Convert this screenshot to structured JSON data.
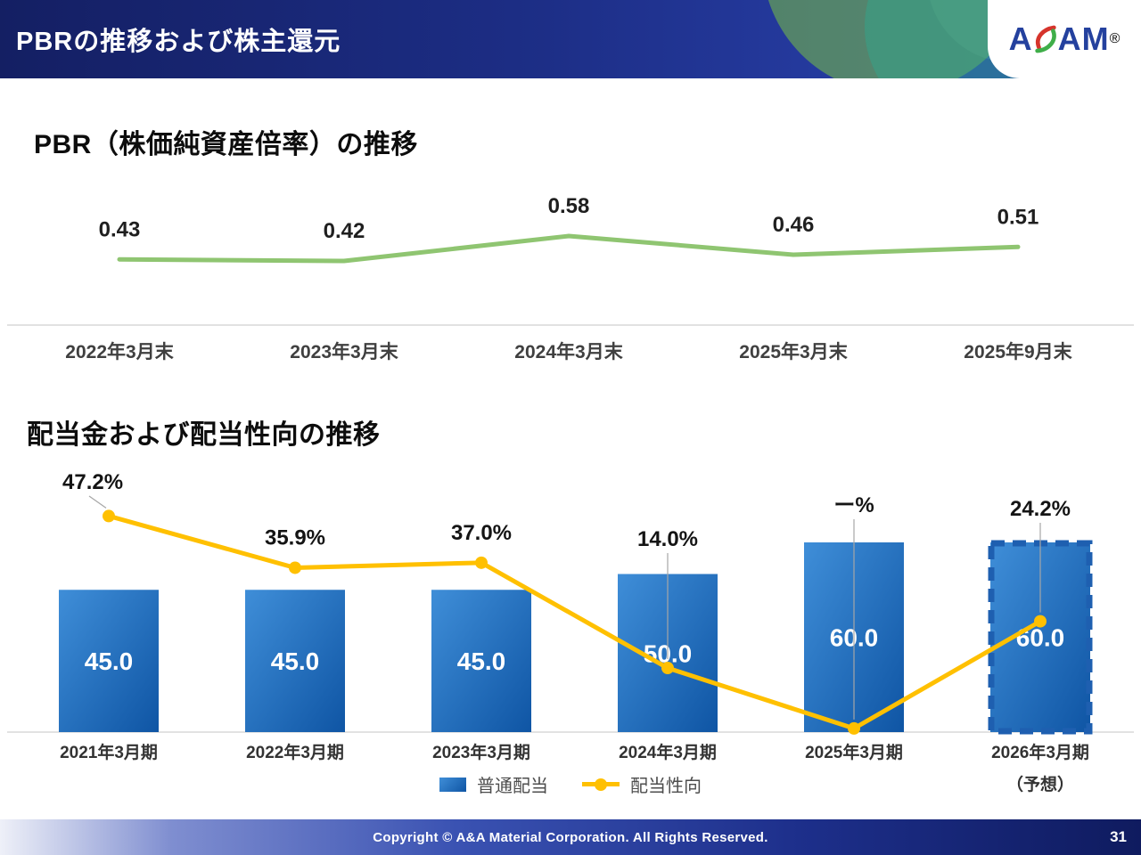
{
  "header": {
    "title": "PBRの推移および株主還元",
    "logo": {
      "part1": "A",
      "part2": "AM",
      "registered": "®"
    }
  },
  "sections": {
    "pbr_title": "PBR（株価純資産倍率）の推移",
    "dividend_title": "配当金および配当性向の推移"
  },
  "legend": {
    "bar_label": "普通配当",
    "line_label": "配当性向"
  },
  "footer": {
    "copyright": "Copyright © A&A Material Corporation. All Rights Reserved.",
    "page": "31"
  },
  "chart_data": [
    {
      "type": "line",
      "title": "PBR（株価純資産倍率）の推移",
      "categories": [
        "2022年3月末",
        "2023年3月末",
        "2024年3月末",
        "2025年3月末",
        "2025年9月末"
      ],
      "series": [
        {
          "name": "PBR",
          "values": [
            0.43,
            0.42,
            0.58,
            0.46,
            0.51
          ]
        }
      ],
      "labels": [
        "0.43",
        "0.42",
        "0.58",
        "0.46",
        "0.51"
      ],
      "line_color": "#8fc571",
      "ylim": [
        0.4,
        0.62
      ],
      "grid": false,
      "legend_position": "none"
    },
    {
      "type": "bar+line",
      "title": "配当金および配当性向の推移",
      "categories": [
        "2021年3月期",
        "2022年3月期",
        "2023年3月期",
        "2024年3月期",
        "2025年3月期",
        "2026年3月期"
      ],
      "category_note": {
        "index": 5,
        "text": "（予想）"
      },
      "series": [
        {
          "name": "普通配当",
          "type": "bar",
          "values": [
            45.0,
            45.0,
            45.0,
            50.0,
            60.0,
            60.0
          ],
          "labels": [
            "45.0",
            "45.0",
            "45.0",
            "50.0",
            "60.0",
            "60.0"
          ],
          "color": "#1c66b5",
          "forecast_index": 5
        },
        {
          "name": "配当性向",
          "type": "line",
          "values": [
            47.2,
            35.9,
            37.0,
            14.0,
            null,
            24.2
          ],
          "labels": [
            "47.2%",
            "35.9%",
            "37.0%",
            "14.0%",
            "ー%",
            "24.2%"
          ],
          "color": "#ffc000"
        }
      ],
      "ylim_bar": [
        0,
        85
      ],
      "ylim_line": [
        0,
        60
      ],
      "grid": false,
      "legend_position": "bottom"
    }
  ]
}
